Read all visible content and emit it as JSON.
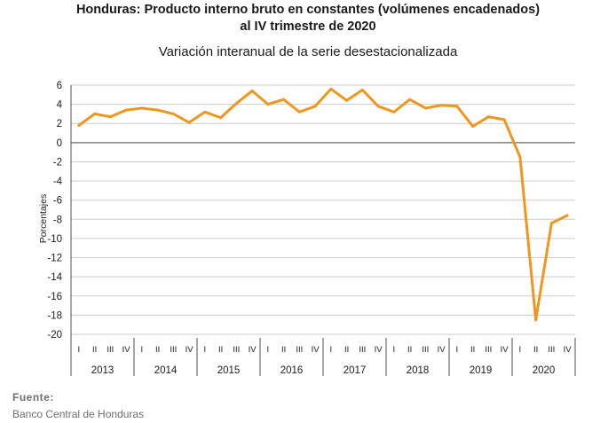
{
  "header": {
    "title_line1": "Honduras: Producto interno bruto en constantes (volúmenes encadenados)",
    "title_line2": "al IV trimestre de 2020",
    "subtitle": "Variación interanual de la serie desestacionalizada"
  },
  "footer": {
    "source_label": "Fuente:",
    "source_text": "Banco Central de Honduras"
  },
  "colors": {
    "line": "#f0961e",
    "grid": "#cccccc",
    "zero_line": "#808080",
    "axis": "#4d4d4d"
  },
  "chart_data": {
    "type": "line",
    "ylabel": "Porcentajes",
    "ylim": [
      -20,
      6
    ],
    "yticks": [
      6,
      4,
      2,
      0,
      -2,
      -4,
      -6,
      -8,
      -10,
      -12,
      -14,
      -16,
      -18,
      -20
    ],
    "grid": true,
    "quarter_labels": [
      "I",
      "II",
      "III",
      "IV"
    ],
    "years": [
      "2013",
      "2014",
      "2015",
      "2016",
      "2017",
      "2018",
      "2019",
      "2020"
    ],
    "series": [
      {
        "values": [
          1.8,
          3.0,
          2.7,
          3.4,
          3.6,
          3.4,
          3.0,
          2.1,
          3.2,
          2.6,
          4.1,
          5.4,
          4.0,
          4.5,
          3.2,
          3.8,
          5.6,
          4.4,
          5.5,
          3.8,
          3.2,
          4.5,
          3.6,
          3.9,
          3.8,
          1.7,
          2.7,
          2.4,
          -1.5,
          -18.5,
          -8.4,
          -7.6
        ]
      }
    ]
  }
}
